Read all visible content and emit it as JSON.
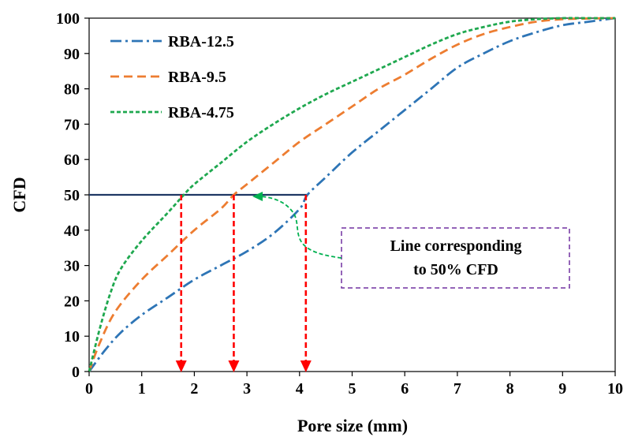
{
  "chart_data": {
    "type": "line",
    "xlabel": "Pore size (mm)",
    "ylabel": "CFD",
    "xlim": [
      0,
      10
    ],
    "ylim": [
      0,
      100
    ],
    "xticks": [
      "0",
      "1",
      "2",
      "3",
      "4",
      "5",
      "6",
      "7",
      "8",
      "9",
      "10"
    ],
    "yticks": [
      "0",
      "10",
      "20",
      "30",
      "40",
      "50",
      "60",
      "70",
      "80",
      "90",
      "100"
    ],
    "grid": false,
    "legend_position": "top-left",
    "series": [
      {
        "name": "RBA-12.5",
        "color": "#2E75B6",
        "dash": "dash-dot",
        "x": [
          0,
          0.3,
          0.6,
          1,
          1.5,
          2,
          2.5,
          3,
          3.5,
          4,
          4.15,
          4.5,
          5,
          5.5,
          6,
          6.5,
          7,
          7.5,
          8,
          8.5,
          9,
          9.5,
          10
        ],
        "y": [
          0,
          6,
          11,
          16,
          21,
          26,
          30,
          34,
          39,
          46,
          50,
          55,
          62,
          68,
          74,
          80,
          86,
          90,
          93.5,
          96,
          98,
          99,
          100
        ]
      },
      {
        "name": "RBA-9.5",
        "color": "#ED7D31",
        "dash": "dashed",
        "x": [
          0,
          0.2,
          0.5,
          1,
          1.5,
          2,
          2.5,
          2.75,
          3,
          3.5,
          4,
          4.5,
          5,
          5.5,
          6,
          6.5,
          7,
          7.5,
          8,
          8.5,
          9,
          9.5,
          10
        ],
        "y": [
          0,
          8,
          17,
          26,
          33,
          40,
          46,
          50,
          53,
          59,
          65,
          70,
          75,
          80,
          84,
          88.5,
          92.5,
          95.5,
          97.5,
          99,
          99.7,
          99.9,
          100
        ]
      },
      {
        "name": "RBA-4.75",
        "color": "#1FA84F",
        "dash": "dotted",
        "x": [
          0,
          0.2,
          0.4,
          0.6,
          1,
          1.5,
          1.8,
          2,
          2.5,
          3,
          3.5,
          4,
          4.5,
          5,
          5.5,
          6,
          6.5,
          7,
          7.5,
          8,
          8.5,
          9,
          9.5,
          10
        ],
        "y": [
          0,
          12,
          22,
          29,
          37,
          45,
          50,
          53,
          59,
          65,
          70,
          74.5,
          78.5,
          82,
          85.5,
          89,
          92.5,
          95.5,
          97.5,
          99,
          99.7,
          100,
          100,
          100
        ]
      }
    ],
    "reference_line": {
      "y": 50,
      "x_start": 0,
      "x_end": 4.15,
      "color": "#1F3864"
    },
    "drop_arrows": {
      "x": [
        1.75,
        2.75,
        4.12
      ],
      "color": "#FF0000"
    },
    "annotation": {
      "lines": [
        "Line corresponding",
        "to 50% CFD"
      ],
      "box_color": "#7030A0",
      "arrow_color": "#00B050"
    }
  }
}
